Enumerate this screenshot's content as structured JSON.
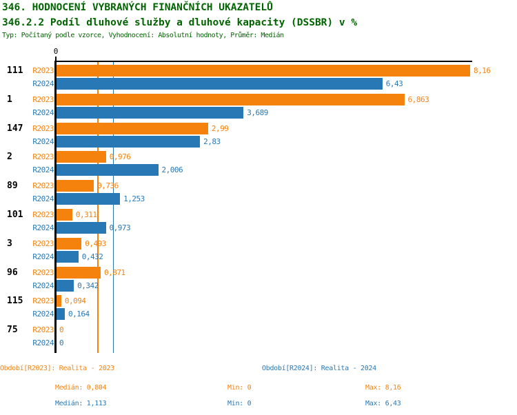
{
  "colors": {
    "orange": "#f5820d",
    "blue": "#2878b5",
    "header_green": "#006400",
    "axis": "#000000"
  },
  "header": {
    "title": "346. HODNOCENÍ VYBRANÝCH FINANČNÍCH UKAZATELŮ",
    "subtitle": "346.2.2 Podíl dluhové služby a dluhové kapacity (DSSBR) v %",
    "meta": "Typ: Počítaný podle vzorce, Vyhodnocení: Absolutní hodnoty, Průměr: Medián"
  },
  "chart_data": {
    "type": "bar",
    "orientation": "horizontal",
    "title": "346. HODNOCENÍ VYBRANÝCH FINANČNÍCH UKAZATELŮ",
    "subtitle": "346.2.2 Podíl dluhové služby a dluhové kapacity (DSSBR) v %",
    "note": "Typ: Počítaný podle vzorce, Vyhodnocení: Absolutní hodnoty, Průměr: Medián",
    "categories": [
      "111",
      "1",
      "147",
      "2",
      "89",
      "101",
      "3",
      "96",
      "115",
      "75"
    ],
    "series": [
      {
        "name": "R2023",
        "color": "#f5820d",
        "values": [
          8.16,
          6.863,
          2.99,
          0.976,
          0.736,
          0.311,
          0.493,
          0.871,
          0.094,
          0
        ],
        "labels": [
          "8,16",
          "6,863",
          "2,99",
          "0,976",
          "0,736",
          "0,311",
          "0,493",
          "0,871",
          "0,094",
          "0"
        ],
        "median": 0.804
      },
      {
        "name": "R2024",
        "color": "#2878b5",
        "values": [
          6.43,
          3.689,
          2.83,
          2.006,
          1.253,
          0.973,
          0.432,
          0.342,
          0.164,
          0
        ],
        "labels": [
          "6,43",
          "3,689",
          "2,83",
          "2,006",
          "1,253",
          "0,973",
          "0,432",
          "0,342",
          "0,164",
          "0"
        ],
        "median": 1.113
      }
    ],
    "xlim": [
      0,
      8.16
    ],
    "origin_tick_label": "0",
    "grid": false,
    "reference_lines": [
      {
        "series": "R2023",
        "value": 0.804
      },
      {
        "series": "R2024",
        "value": 1.113
      }
    ],
    "legend_position": "bottom"
  },
  "footer": {
    "legend": [
      {
        "label": "Období[R2023]: Realita - 2023"
      },
      {
        "label": "Období[R2024]: Realita - 2024"
      }
    ],
    "stats": [
      {
        "median": "Medián: 0,804",
        "min": "Min: 0",
        "max": "Max: 8,16"
      },
      {
        "median": "Medián: 1,113",
        "min": "Min: 0",
        "max": "Max: 6,43"
      }
    ]
  }
}
